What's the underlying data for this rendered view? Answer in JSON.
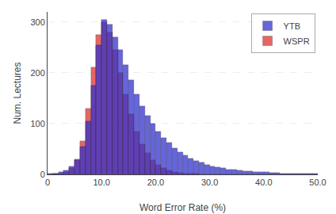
{
  "chart_data": {
    "type": "histogram",
    "xlabel": "Word Error Rate (%)",
    "ylabel": "Num. Lectures",
    "xlim": [
      0,
      50
    ],
    "ylim": [
      0,
      320
    ],
    "xticks": [
      0,
      {
        "value": 10,
        "label": "10.0"
      },
      {
        "value": 20,
        "label": "20.0"
      },
      {
        "value": 30,
        "label": "30.0"
      },
      {
        "value": 40,
        "label": "40.0"
      },
      {
        "value": 50,
        "label": "50.0"
      }
    ],
    "yticks": [
      0,
      100,
      200,
      300
    ],
    "grid": true,
    "legend": "upper right",
    "bins": [
      0,
      1,
      2,
      3,
      4,
      5,
      6,
      7,
      8,
      9,
      10,
      11,
      12,
      13,
      14,
      15,
      16,
      17,
      18,
      19,
      20,
      21,
      22,
      23,
      24,
      25,
      26,
      27,
      28,
      29,
      30,
      31,
      32,
      33,
      34,
      35,
      36,
      37,
      38,
      39,
      40,
      41,
      42,
      43,
      44,
      45,
      46,
      47,
      48,
      49,
      50
    ],
    "series": [
      {
        "name": "WSPR",
        "color": "#dd3333",
        "values": [
          0,
          1,
          2,
          5,
          12,
          30,
          65,
          130,
          210,
          275,
          300,
          280,
          245,
          200,
          158,
          118,
          85,
          60,
          42,
          28,
          18,
          12,
          8,
          5,
          3,
          2,
          1,
          1,
          0,
          0,
          0,
          0,
          0,
          0,
          0,
          0,
          0,
          0,
          0,
          0,
          0,
          0,
          0,
          0,
          0,
          0,
          0,
          0,
          0,
          0
        ]
      },
      {
        "name": "YTB",
        "color": "#3333cc",
        "values": [
          1,
          2,
          4,
          8,
          15,
          28,
          55,
          105,
          175,
          255,
          305,
          295,
          270,
          245,
          215,
          185,
          158,
          135,
          115,
          100,
          85,
          72,
          62,
          52,
          44,
          38,
          32,
          27,
          23,
          19,
          16,
          14,
          12,
          10,
          9,
          8,
          7,
          6,
          5,
          4,
          4,
          3,
          3,
          2,
          2,
          2,
          1,
          1,
          1,
          1
        ]
      }
    ]
  }
}
